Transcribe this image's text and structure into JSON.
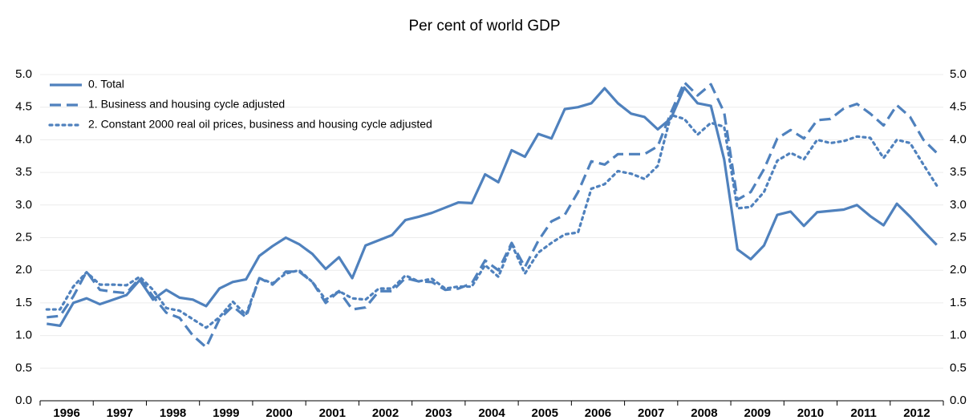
{
  "chart_data": {
    "type": "line",
    "title": "Per cent of world GDP",
    "categories": [
      "1996",
      null,
      null,
      null,
      "1997",
      null,
      null,
      null,
      "1998",
      null,
      null,
      null,
      "1999",
      null,
      null,
      null,
      "2000",
      null,
      null,
      null,
      "2001",
      null,
      null,
      null,
      "2002",
      null,
      null,
      null,
      "2003",
      null,
      null,
      null,
      "2004",
      null,
      null,
      null,
      "2005",
      null,
      null,
      null,
      "2006",
      null,
      null,
      null,
      "2007",
      null,
      null,
      null,
      "2008",
      null,
      null,
      null,
      "2009",
      null,
      null,
      null,
      "2010",
      null,
      null,
      null,
      "2011",
      null,
      null,
      null,
      "2012",
      null,
      null,
      null
    ],
    "series": [
      {
        "name": "0. Total",
        "color": "#4f81bd",
        "dash": "solid",
        "values": [
          1.18,
          1.15,
          1.5,
          1.57,
          1.48,
          1.55,
          1.62,
          1.85,
          1.55,
          1.7,
          1.58,
          1.55,
          1.45,
          1.72,
          1.82,
          1.86,
          2.22,
          2.37,
          2.5,
          2.4,
          2.25,
          2.02,
          2.2,
          1.88,
          2.38,
          2.46,
          2.54,
          2.77,
          2.82,
          2.88,
          2.96,
          3.04,
          3.03,
          3.47,
          3.35,
          3.84,
          3.74,
          4.09,
          4.02,
          4.47,
          4.5,
          4.56,
          4.79,
          4.56,
          4.4,
          4.35,
          4.16,
          4.33,
          4.8,
          4.56,
          4.52,
          3.7,
          2.32,
          2.17,
          2.38,
          2.85,
          2.9,
          2.68,
          2.89,
          2.91,
          2.93,
          3.0,
          2.83,
          2.69,
          3.02,
          2.82,
          2.6,
          2.39
        ]
      },
      {
        "name": "1. Business and housing cycle adjusted",
        "color": "#4f81bd",
        "dash": "dashed",
        "values": [
          1.28,
          1.3,
          1.6,
          1.98,
          1.7,
          1.67,
          1.65,
          1.88,
          1.6,
          1.35,
          1.27,
          1.0,
          0.82,
          1.25,
          1.45,
          1.28,
          1.88,
          1.78,
          1.98,
          1.98,
          1.82,
          1.5,
          1.68,
          1.4,
          1.43,
          1.68,
          1.68,
          1.88,
          1.83,
          1.82,
          1.7,
          1.72,
          1.8,
          2.15,
          2.0,
          2.42,
          2.05,
          2.45,
          2.75,
          2.85,
          3.2,
          3.67,
          3.62,
          3.78,
          3.78,
          3.78,
          3.9,
          4.42,
          4.88,
          4.68,
          4.85,
          4.42,
          3.08,
          3.2,
          3.55,
          4.02,
          4.15,
          4.02,
          4.3,
          4.32,
          4.48,
          4.55,
          4.4,
          4.22,
          4.53,
          4.35,
          4.0,
          3.8
        ]
      },
      {
        "name": "2. Constant 2000 real oil prices, business and housing cycle adjusted",
        "color": "#4f81bd",
        "dash": "dotted",
        "values": [
          1.4,
          1.4,
          1.75,
          1.97,
          1.78,
          1.78,
          1.77,
          1.9,
          1.7,
          1.42,
          1.38,
          1.25,
          1.12,
          1.28,
          1.52,
          1.32,
          1.88,
          1.8,
          1.95,
          2.0,
          1.82,
          1.55,
          1.68,
          1.57,
          1.55,
          1.72,
          1.72,
          1.92,
          1.83,
          1.87,
          1.72,
          1.75,
          1.75,
          2.08,
          1.9,
          2.4,
          1.95,
          2.27,
          2.42,
          2.55,
          2.58,
          3.25,
          3.32,
          3.52,
          3.48,
          3.4,
          3.6,
          4.38,
          4.32,
          4.08,
          4.26,
          4.2,
          2.95,
          2.97,
          3.2,
          3.68,
          3.8,
          3.7,
          4.0,
          3.95,
          3.98,
          4.05,
          4.03,
          3.72,
          4.0,
          3.95,
          3.62,
          3.3
        ]
      }
    ],
    "ylim": [
      0,
      5
    ],
    "yticks": [
      {
        "value": 0,
        "label": "0.0"
      },
      0.5,
      {
        "value": 1,
        "label": "1.0"
      },
      1.5,
      {
        "value": 2,
        "label": "2.0"
      },
      2.5,
      {
        "value": 3,
        "label": "3.0"
      },
      3.5,
      {
        "value": 4,
        "label": "4.0"
      },
      4.5,
      {
        "value": 5,
        "label": "5.0"
      }
    ],
    "y2lim": [
      0,
      5
    ],
    "y2ticks": [
      {
        "value": 0,
        "label": "0.0"
      },
      0.5,
      {
        "value": 1,
        "label": "1.0"
      },
      1.5,
      {
        "value": 2,
        "label": "2.0"
      },
      2.5,
      {
        "value": 3,
        "label": "3.0"
      },
      3.5,
      {
        "value": 4,
        "label": "4.0"
      },
      4.5,
      {
        "value": 5,
        "label": "5.0"
      }
    ],
    "grid": true,
    "legend": "top-left"
  }
}
